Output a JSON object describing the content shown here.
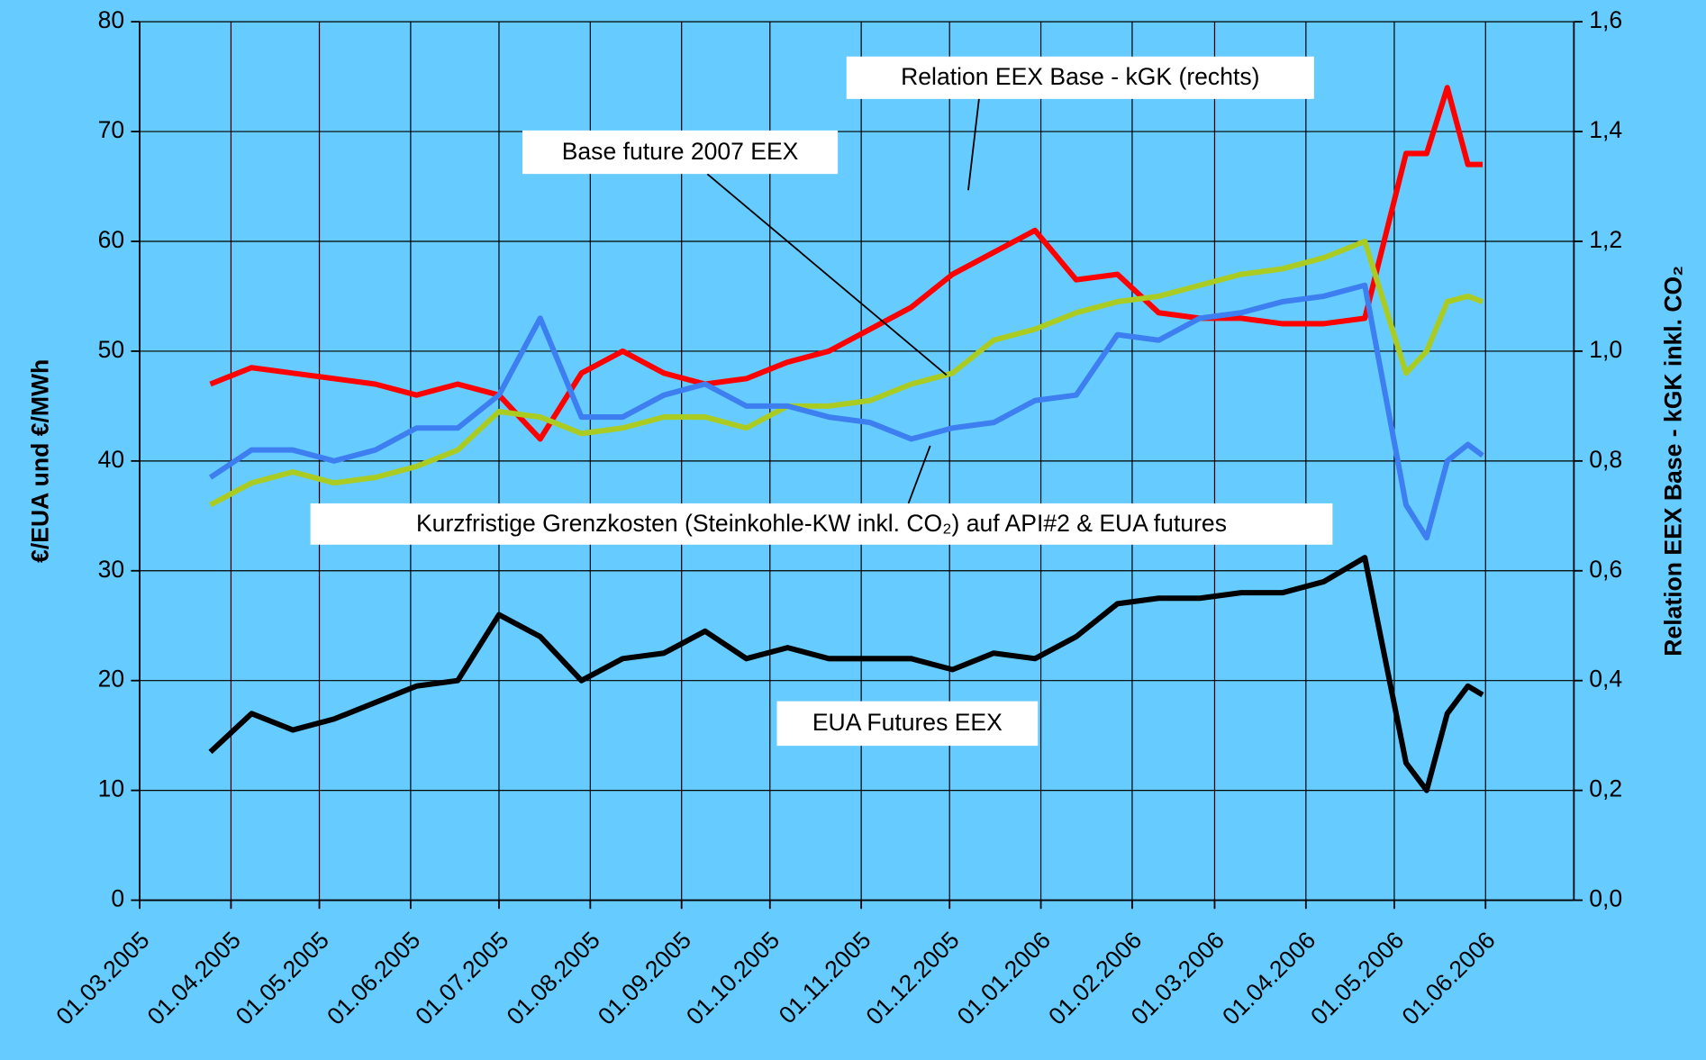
{
  "chart_data": {
    "type": "line",
    "ylabel": "€/EUA und €/MWh",
    "y2label": "Relation EEX Base - kGK inkl. CO₂",
    "xlim": [
      "2005-03-01",
      "2006-07-01"
    ],
    "xticks": [
      {
        "value": "2005-03-01",
        "label": "01.03.2005"
      },
      {
        "value": "2005-04-01",
        "label": "01.04.2005"
      },
      {
        "value": "2005-05-01",
        "label": "01.05.2005"
      },
      {
        "value": "2005-06-01",
        "label": "01.06.2005"
      },
      {
        "value": "2005-07-01",
        "label": "01.07.2005"
      },
      {
        "value": "2005-08-01",
        "label": "01.08.2005"
      },
      {
        "value": "2005-09-01",
        "label": "01.09.2005"
      },
      {
        "value": "2005-10-01",
        "label": "01.10.2005"
      },
      {
        "value": "2005-11-01",
        "label": "01.11.2005"
      },
      {
        "value": "2005-12-01",
        "label": "01.12.2005"
      },
      {
        "value": "2006-01-01",
        "label": "01.01.2006"
      },
      {
        "value": "2006-02-01",
        "label": "01.02.2006"
      },
      {
        "value": "2006-03-01",
        "label": "01.03.2006"
      },
      {
        "value": "2006-04-01",
        "label": "01.04.2006"
      },
      {
        "value": "2006-05-01",
        "label": "01.05.2006"
      },
      {
        "value": "2006-06-01",
        "label": "01.06.2006"
      }
    ],
    "ylim": [
      0,
      80
    ],
    "yticks": [
      0,
      10,
      20,
      30,
      40,
      50,
      60,
      70,
      80
    ],
    "y2lim": [
      0,
      1.6
    ],
    "y2ticks": [
      {
        "value": 0,
        "label": "0,0"
      },
      {
        "value": 0.2,
        "label": "0,2"
      },
      {
        "value": 0.4,
        "label": "0,4"
      },
      {
        "value": 0.6,
        "label": "0,6"
      },
      {
        "value": 0.8,
        "label": "0,8"
      },
      {
        "value": 1.0,
        "label": "1,0"
      },
      {
        "value": 1.2,
        "label": "1,2"
      },
      {
        "value": 1.4,
        "label": "1,4"
      },
      {
        "value": 1.6,
        "label": "1,6"
      }
    ],
    "grid": true,
    "x": [
      "2005-03-25",
      "2005-04-08",
      "2005-04-22",
      "2005-05-06",
      "2005-05-20",
      "2005-06-03",
      "2005-06-17",
      "2005-07-01",
      "2005-07-15",
      "2005-07-29",
      "2005-08-12",
      "2005-08-26",
      "2005-09-09",
      "2005-09-23",
      "2005-10-07",
      "2005-10-21",
      "2005-11-04",
      "2005-11-18",
      "2005-12-02",
      "2005-12-16",
      "2005-12-30",
      "2006-01-13",
      "2006-01-27",
      "2006-02-10",
      "2006-02-24",
      "2006-03-10",
      "2006-03-24",
      "2006-04-07",
      "2006-04-21",
      "2006-05-05",
      "2006-05-12",
      "2006-05-19",
      "2006-05-26",
      "2006-05-31"
    ],
    "series": [
      {
        "name": "Relation EEX Base - kGK (rechts)",
        "color": "#ff0000",
        "axis": "y2",
        "values": [
          0.94,
          0.97,
          0.96,
          0.95,
          0.94,
          0.92,
          0.94,
          0.92,
          0.84,
          0.96,
          1.0,
          0.96,
          0.94,
          0.95,
          0.98,
          1.0,
          1.04,
          1.08,
          1.14,
          1.18,
          1.22,
          1.13,
          1.14,
          1.07,
          1.06,
          1.06,
          1.05,
          1.05,
          1.06,
          1.36,
          1.36,
          1.48,
          1.34,
          1.34
        ]
      },
      {
        "name": "Base future 2007 EEX",
        "color": "#aacc22",
        "values": [
          36,
          38,
          39,
          38,
          38.5,
          39.5,
          41,
          44.5,
          44,
          42.5,
          43,
          44,
          44,
          43,
          45,
          45,
          45.5,
          47,
          48,
          51,
          52,
          53.5,
          54.5,
          55,
          56,
          57,
          57.5,
          58.5,
          60,
          48,
          50,
          54.5,
          55,
          54.5
        ]
      },
      {
        "name": "Kurzfristige Grenzkosten (Steinkohle-KW inkl. CO₂) auf API#2 & EUA futures",
        "color": "#3d7ef0",
        "values": [
          38.5,
          41,
          41,
          40,
          41,
          43,
          43,
          46,
          53,
          44,
          44,
          46,
          47,
          45,
          45,
          44,
          43.5,
          42,
          43,
          43.5,
          45.5,
          46,
          51.5,
          51,
          53,
          53.5,
          54.5,
          55,
          56,
          36,
          33,
          40,
          41.5,
          40.5
        ]
      },
      {
        "name": "EUA Futures EEX",
        "color": "#000000",
        "values": [
          13.5,
          17,
          15.5,
          16.5,
          18,
          19.5,
          20,
          26,
          24,
          20,
          22,
          22.5,
          24.5,
          22,
          23,
          22,
          22,
          22,
          21,
          22.5,
          22,
          24,
          27,
          27.5,
          27.5,
          28,
          28,
          29,
          31.2,
          12.5,
          10,
          17,
          19.5,
          18.7
        ]
      }
    ]
  }
}
